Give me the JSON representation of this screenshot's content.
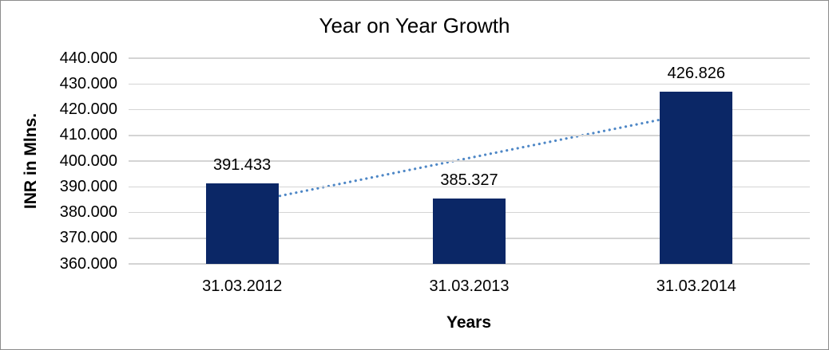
{
  "chart_data": {
    "type": "bar",
    "title": "Year on Year Growth",
    "categories": [
      "31.03.2012",
      "31.03.2013",
      "31.03.2014"
    ],
    "values": [
      391.433,
      385.327,
      426.826
    ],
    "data_labels": [
      "391.433",
      "385.327",
      "426.826"
    ],
    "xlabel": "Years",
    "ylabel": "INR in Mlns.",
    "ylim": [
      360,
      440
    ],
    "ytick_step": 10,
    "ytick_labels": [
      "440.000",
      "430.000",
      "420.000",
      "410.000",
      "400.000",
      "390.000",
      "380.000",
      "370.000",
      "360.000"
    ],
    "grid": true,
    "legend": "none",
    "trendline": {
      "type": "linear",
      "style": "dotted"
    },
    "colors": {
      "bar": "#0b2766",
      "trendline": "#4e87c6",
      "gridline": "#d4d4d4",
      "text": "#000000"
    }
  }
}
